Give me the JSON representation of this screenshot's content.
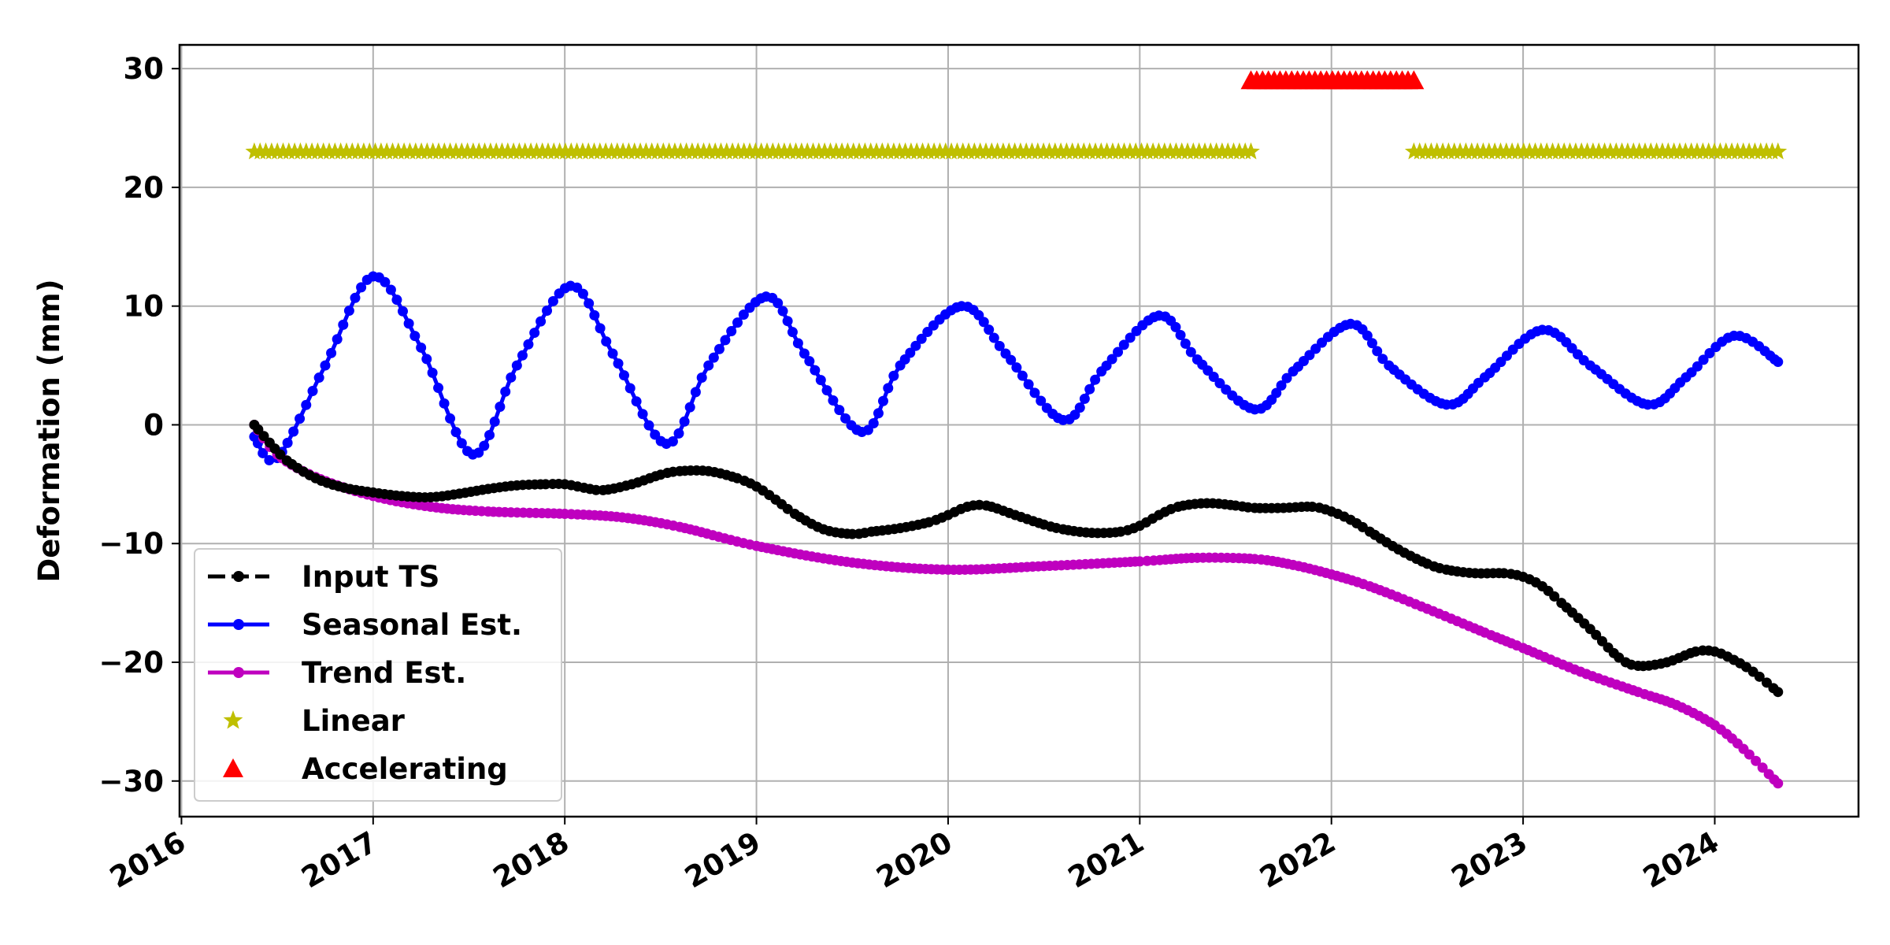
{
  "chart_data": {
    "type": "line",
    "title": "",
    "xlabel": "",
    "ylabel": "Deformation (mm)",
    "xlim": [
      2015.99,
      2024.75
    ],
    "ylim": [
      -33,
      32
    ],
    "xticks": [
      2016,
      2017,
      2018,
      2019,
      2020,
      2021,
      2022,
      2023,
      2024
    ],
    "xtick_labels": [
      "2016",
      "2017",
      "2018",
      "2019",
      "2020",
      "2021",
      "2022",
      "2023",
      "2024"
    ],
    "yticks": [
      30,
      20,
      10,
      0,
      -10,
      -20,
      -30
    ],
    "ytick_labels": [
      "30",
      "20",
      "10",
      "0",
      "−10",
      "−20",
      "−30"
    ],
    "grid": true,
    "legend_position": "lower-left",
    "series": [
      {
        "name": "Input TS",
        "color": "#000000",
        "style": "dashed-line-dots",
        "x": [
          2016.38,
          2016.46,
          2016.55,
          2016.7,
          2016.85,
          2017.0,
          2017.15,
          2017.3,
          2017.45,
          2017.6,
          2017.75,
          2017.9,
          2018.0,
          2018.1,
          2018.2,
          2018.35,
          2018.5,
          2018.6,
          2018.75,
          2018.9,
          2019.0,
          2019.1,
          2019.2,
          2019.35,
          2019.5,
          2019.6,
          2019.75,
          2019.9,
          2020.0,
          2020.1,
          2020.2,
          2020.35,
          2020.5,
          2020.6,
          2020.75,
          2020.9,
          2021.0,
          2021.1,
          2021.2,
          2021.35,
          2021.5,
          2021.6,
          2021.75,
          2021.9,
          2022.0,
          2022.1,
          2022.2,
          2022.35,
          2022.5,
          2022.6,
          2022.75,
          2022.9,
          2023.0,
          2023.1,
          2023.2,
          2023.35,
          2023.5,
          2023.6,
          2023.75,
          2023.9,
          2024.0,
          2024.1,
          2024.2,
          2024.33
        ],
        "y": [
          0,
          -1.5,
          -3,
          -4.5,
          -5.3,
          -5.7,
          -6.0,
          -6.1,
          -5.8,
          -5.4,
          -5.1,
          -5.0,
          -5.0,
          -5.3,
          -5.5,
          -5.0,
          -4.2,
          -3.9,
          -3.9,
          -4.5,
          -5.2,
          -6.3,
          -7.5,
          -8.8,
          -9.2,
          -9.0,
          -8.7,
          -8.2,
          -7.6,
          -6.9,
          -6.8,
          -7.6,
          -8.4,
          -8.8,
          -9.1,
          -9.0,
          -8.5,
          -7.6,
          -6.9,
          -6.6,
          -6.8,
          -7.0,
          -7.0,
          -6.9,
          -7.3,
          -8.0,
          -9.0,
          -10.5,
          -11.7,
          -12.2,
          -12.5,
          -12.5,
          -12.8,
          -13.6,
          -15.0,
          -17.2,
          -19.6,
          -20.3,
          -20.0,
          -19.1,
          -19.1,
          -19.8,
          -20.8,
          -22.5
        ]
      },
      {
        "name": "Seasonal Est.",
        "color": "#0000ff",
        "style": "line-dots",
        "x": [
          2016.38,
          2016.5,
          2016.75,
          2017.0,
          2017.25,
          2017.52,
          2017.75,
          2018.03,
          2018.25,
          2018.53,
          2018.75,
          2019.05,
          2019.25,
          2019.55,
          2019.75,
          2020.07,
          2020.3,
          2020.6,
          2020.8,
          2021.1,
          2021.3,
          2021.6,
          2021.8,
          2022.1,
          2022.3,
          2022.6,
          2022.8,
          2023.1,
          2023.35,
          2023.65,
          2023.85,
          2024.1,
          2024.33
        ],
        "y": [
          -1,
          -2.8,
          5,
          12.5,
          6.5,
          -2.5,
          5,
          11.7,
          6,
          -1.6,
          5,
          10.8,
          6,
          -0.6,
          5,
          10.0,
          6,
          0.4,
          4.5,
          9.2,
          5.5,
          1.3,
          4.5,
          8.5,
          5,
          1.7,
          4,
          8.0,
          5,
          1.7,
          4,
          7.5,
          5.3
        ]
      },
      {
        "name": "Trend Est.",
        "color": "#bf00bf",
        "style": "line-dots",
        "x": [
          2016.38,
          2016.5,
          2016.7,
          2017.0,
          2017.3,
          2017.6,
          2018.0,
          2018.3,
          2018.6,
          2019.0,
          2019.5,
          2020.0,
          2020.5,
          2021.0,
          2021.3,
          2021.6,
          2021.8,
          2022.0,
          2022.2,
          2022.5,
          2022.8,
          2023.0,
          2023.3,
          2023.6,
          2023.8,
          2024.0,
          2024.15,
          2024.33
        ],
        "y": [
          0,
          -2.5,
          -4.4,
          -6.0,
          -6.9,
          -7.3,
          -7.5,
          -7.8,
          -8.6,
          -10.2,
          -11.6,
          -12.2,
          -11.9,
          -11.5,
          -11.2,
          -11.3,
          -11.8,
          -12.6,
          -13.6,
          -15.5,
          -17.5,
          -18.8,
          -20.8,
          -22.5,
          -23.6,
          -25.3,
          -27.3,
          -30.2
        ]
      },
      {
        "name": "Linear",
        "color": "#bfbf00",
        "style": "star-markers",
        "marker_y": 23,
        "segments": [
          [
            2016.38,
            2021.58
          ],
          [
            2022.43,
            2024.33
          ]
        ]
      },
      {
        "name": "Accelerating",
        "color": "#ff0000",
        "style": "triangle-markers",
        "marker_y": 29,
        "segments": [
          [
            2021.58,
            2022.43
          ]
        ]
      }
    ]
  }
}
